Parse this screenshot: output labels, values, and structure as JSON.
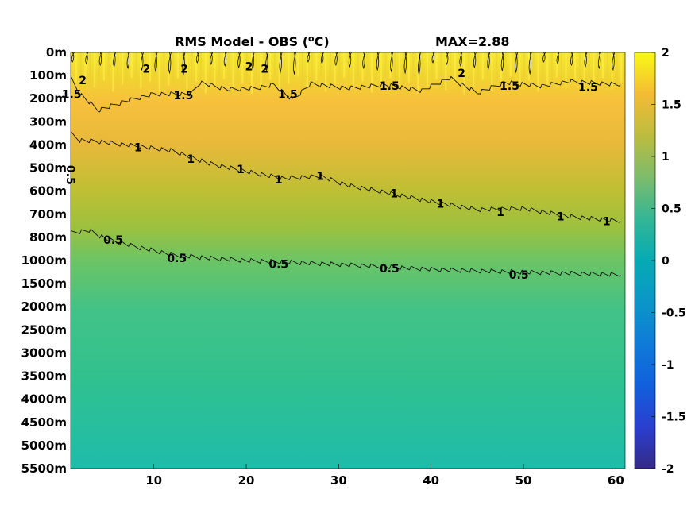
{
  "chart_data": {
    "type": "heatmap",
    "title": "RMS Model - OBS (",
    "title_unit_sup": "o",
    "title_unit": "C)",
    "max_text": "MAX=2.88",
    "y_tick_labels": [
      "0m",
      "100m",
      "200m",
      "300m",
      "400m",
      "500m",
      "600m",
      "700m",
      "800m",
      "1000m",
      "1500m",
      "2000m",
      "2500m",
      "3000m",
      "3500m",
      "4000m",
      "4500m",
      "5000m",
      "5500m"
    ],
    "x_ticks": [
      10,
      20,
      30,
      40,
      50,
      60
    ],
    "x_range": [
      1,
      61
    ],
    "colorbar": {
      "range": [
        -2,
        2
      ],
      "ticks": [
        2,
        1.5,
        1,
        0.5,
        0,
        -0.5,
        -1,
        -1.5,
        -2
      ],
      "tick_labels": [
        "2",
        "1.5",
        "1",
        "0.5",
        "0",
        "-0.5",
        "-1",
        "-1.5",
        "-2"
      ],
      "colormap": "parula"
    },
    "contour_levels": [
      0.5,
      1,
      1.5,
      2
    ],
    "contours": [
      {
        "level": 0.5,
        "points": [
          [
            1,
            7.8
          ],
          [
            3,
            7.7
          ],
          [
            5,
            8.1
          ],
          [
            8,
            8.4
          ],
          [
            12,
            8.75
          ],
          [
            16,
            8.9
          ],
          [
            20,
            9.0
          ],
          [
            25,
            9.08
          ],
          [
            30,
            9.17
          ],
          [
            35,
            9.27
          ],
          [
            40,
            9.38
          ],
          [
            45,
            9.45
          ],
          [
            50,
            9.5
          ],
          [
            55,
            9.55
          ],
          [
            60.5,
            9.62
          ]
        ]
      },
      {
        "level": 1,
        "points": [
          [
            1,
            3.5
          ],
          [
            2,
            3.8
          ],
          [
            4,
            3.85
          ],
          [
            8,
            4.05
          ],
          [
            12,
            4.25
          ],
          [
            16,
            4.8
          ],
          [
            20,
            5.15
          ],
          [
            24,
            5.45
          ],
          [
            28,
            5.35
          ],
          [
            31,
            5.75
          ],
          [
            35,
            6.05
          ],
          [
            40,
            6.45
          ],
          [
            45,
            6.8
          ],
          [
            50,
            6.75
          ],
          [
            55,
            7.1
          ],
          [
            60.5,
            7.3
          ]
        ]
      },
      {
        "level": 1.5,
        "points": [
          [
            1,
            1.1
          ],
          [
            2,
            1.8
          ],
          [
            4,
            2.5
          ],
          [
            7,
            2.1
          ],
          [
            10,
            1.8
          ],
          [
            14,
            1.8
          ],
          [
            15,
            1.3
          ],
          [
            18,
            1.6
          ],
          [
            21,
            1.55
          ],
          [
            23,
            1.4
          ],
          [
            25,
            2.05
          ],
          [
            27,
            1.35
          ],
          [
            31,
            1.55
          ],
          [
            35,
            1.4
          ],
          [
            39,
            1.65
          ],
          [
            42,
            1.1
          ],
          [
            45,
            1.75
          ],
          [
            48,
            1.3
          ],
          [
            52,
            1.45
          ],
          [
            55,
            1.25
          ],
          [
            60.5,
            1.4
          ]
        ]
      }
    ],
    "contour_labels": [
      {
        "text": "2",
        "x": 2.3,
        "y": 1.2
      },
      {
        "text": "1.5",
        "x": 1.1,
        "y": 1.8
      },
      {
        "text": "2",
        "x": 9.2,
        "y": 0.7
      },
      {
        "text": "2",
        "x": 13.3,
        "y": 0.7
      },
      {
        "text": "2",
        "x": 20.3,
        "y": 0.6
      },
      {
        "text": "2",
        "x": 22.0,
        "y": 0.7
      },
      {
        "text": "2",
        "x": 43.3,
        "y": 0.9
      },
      {
        "text": "1.5",
        "x": 13.2,
        "y": 1.85
      },
      {
        "text": "1.5",
        "x": 24.5,
        "y": 1.8
      },
      {
        "text": "1.5",
        "x": 35.5,
        "y": 1.45
      },
      {
        "text": "1.5",
        "x": 48.5,
        "y": 1.45
      },
      {
        "text": "1.5",
        "x": 57.0,
        "y": 1.5
      },
      {
        "text": "1",
        "x": 8.3,
        "y": 4.1
      },
      {
        "text": "1",
        "x": 14.0,
        "y": 4.6
      },
      {
        "text": "1",
        "x": 19.4,
        "y": 5.05
      },
      {
        "text": "1",
        "x": 23.5,
        "y": 5.5
      },
      {
        "text": "1",
        "x": 28.0,
        "y": 5.35
      },
      {
        "text": "1",
        "x": 36.0,
        "y": 6.1
      },
      {
        "text": "1",
        "x": 41.0,
        "y": 6.55
      },
      {
        "text": "1",
        "x": 47.5,
        "y": 6.9
      },
      {
        "text": "1",
        "x": 54.0,
        "y": 7.1
      },
      {
        "text": "1",
        "x": 59.0,
        "y": 7.3
      },
      {
        "text": "0.5",
        "x": 1.0,
        "y": 5.3
      },
      {
        "text": "0.5",
        "x": 5.6,
        "y": 8.1
      },
      {
        "text": "0.5",
        "x": 12.5,
        "y": 8.9
      },
      {
        "text": "0.5",
        "x": 23.5,
        "y": 9.15
      },
      {
        "text": "0.5",
        "x": 35.5,
        "y": 9.35
      },
      {
        "text": "0.5",
        "x": 49.5,
        "y": 9.62
      }
    ],
    "grid": false,
    "legend": "none"
  }
}
